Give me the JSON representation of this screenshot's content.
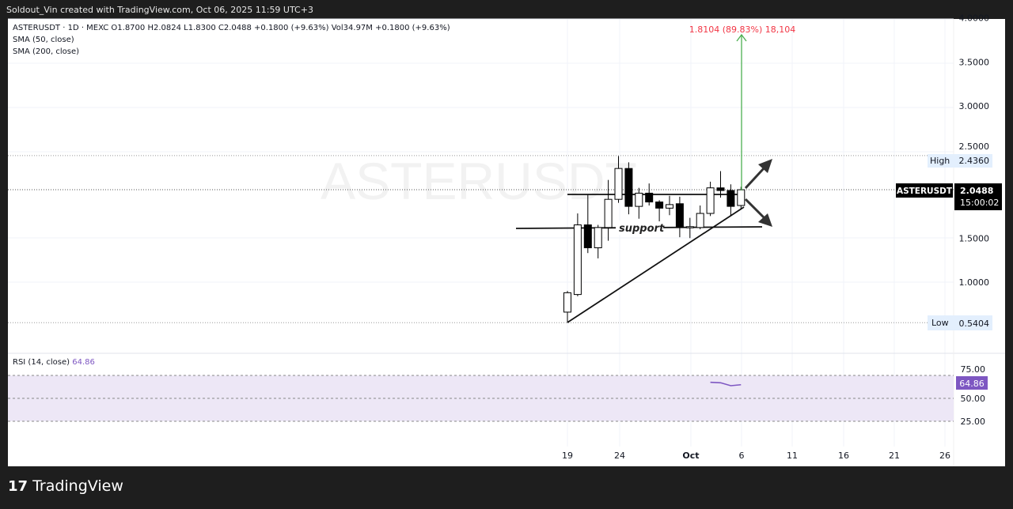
{
  "header": {
    "credit": "Soldout_Vin created with TradingView.com, Oct 06, 2025 11:59 UTC+3"
  },
  "legend": {
    "symbol_line": "ASTERUSDT · 1D · MEXC  O1.8700  H2.0824  L1.8300  C2.0488  +0.1800 (+9.63%)  Vol34.97M  +0.1800 (+9.63%)",
    "sma50": "SMA (50, close)",
    "sma200": "SMA (200, close)",
    "rsi_label": "RSI (14, close)",
    "rsi_value": "64.86"
  },
  "watermark": "ASTERUSDT",
  "colors": {
    "up_body": "#ffffff",
    "down_body": "#000000",
    "measure": "#4caf50",
    "measure_text": "#f23645",
    "rsi": "#7e57c2",
    "rsi_band": "#ede7f6"
  },
  "annotations": {
    "support": "support",
    "measure": "1.8104 (89.83%) 18,104"
  },
  "price_axis": {
    "ticks": [
      "4.0000",
      "3.5000",
      "3.0000",
      "2.5000",
      "1.5000",
      "1.0000"
    ],
    "high_label": "High",
    "high_value": "2.4360",
    "low_label": "Low",
    "low_value": "0.5404",
    "symbol_tag": "ASTERUSDT",
    "last_price": "2.0488",
    "countdown": "15:00:02"
  },
  "rsi_axis": {
    "ticks": [
      "75.00",
      "50.00",
      "25.00"
    ],
    "value": "64.86"
  },
  "time_axis": {
    "ticks": [
      "19",
      "24",
      "Oct",
      "6",
      "11",
      "16",
      "21",
      "26"
    ]
  },
  "brand": "TradingView",
  "chart_data": {
    "type": "candlestick",
    "dates": [
      "Sep 19",
      "Sep 20",
      "Sep 21",
      "Sep 22",
      "Sep 23",
      "Sep 24",
      "Sep 25",
      "Sep 26",
      "Sep 27",
      "Sep 28",
      "Sep 29",
      "Sep 30",
      "Oct 1",
      "Oct 2",
      "Oct 3",
      "Oct 4",
      "Oct 5",
      "Oct 6"
    ],
    "ohlc": [
      [
        0.66,
        0.9,
        0.54,
        0.88
      ],
      [
        0.86,
        1.78,
        0.84,
        1.65
      ],
      [
        1.65,
        1.99,
        1.33,
        1.39
      ],
      [
        1.39,
        1.65,
        1.27,
        1.62
      ],
      [
        1.62,
        2.16,
        1.47,
        1.94
      ],
      [
        1.94,
        2.43,
        1.9,
        2.29
      ],
      [
        2.29,
        2.36,
        1.77,
        1.86
      ],
      [
        1.86,
        2.07,
        1.72,
        2.01
      ],
      [
        2.01,
        2.12,
        1.87,
        1.91
      ],
      [
        1.91,
        1.93,
        1.69,
        1.84
      ],
      [
        1.84,
        1.98,
        1.76,
        1.88
      ],
      [
        1.89,
        1.97,
        1.51,
        1.62
      ],
      [
        1.62,
        1.73,
        1.5,
        1.63
      ],
      [
        1.62,
        1.87,
        1.6,
        1.78
      ],
      [
        1.78,
        2.14,
        1.75,
        2.07
      ],
      [
        2.07,
        2.26,
        1.96,
        2.04
      ],
      [
        2.04,
        2.11,
        1.75,
        1.86
      ],
      [
        1.87,
        2.0824,
        1.83,
        2.0488
      ]
    ],
    "rsi": {
      "dates": [
        "Oct 3",
        "Oct 4",
        "Oct 5",
        "Oct 6"
      ],
      "values": [
        67.5,
        67.0,
        63.8,
        64.86
      ],
      "bands": [
        75,
        50,
        25
      ]
    },
    "ylim": [
      0.5,
      4.0
    ]
  }
}
